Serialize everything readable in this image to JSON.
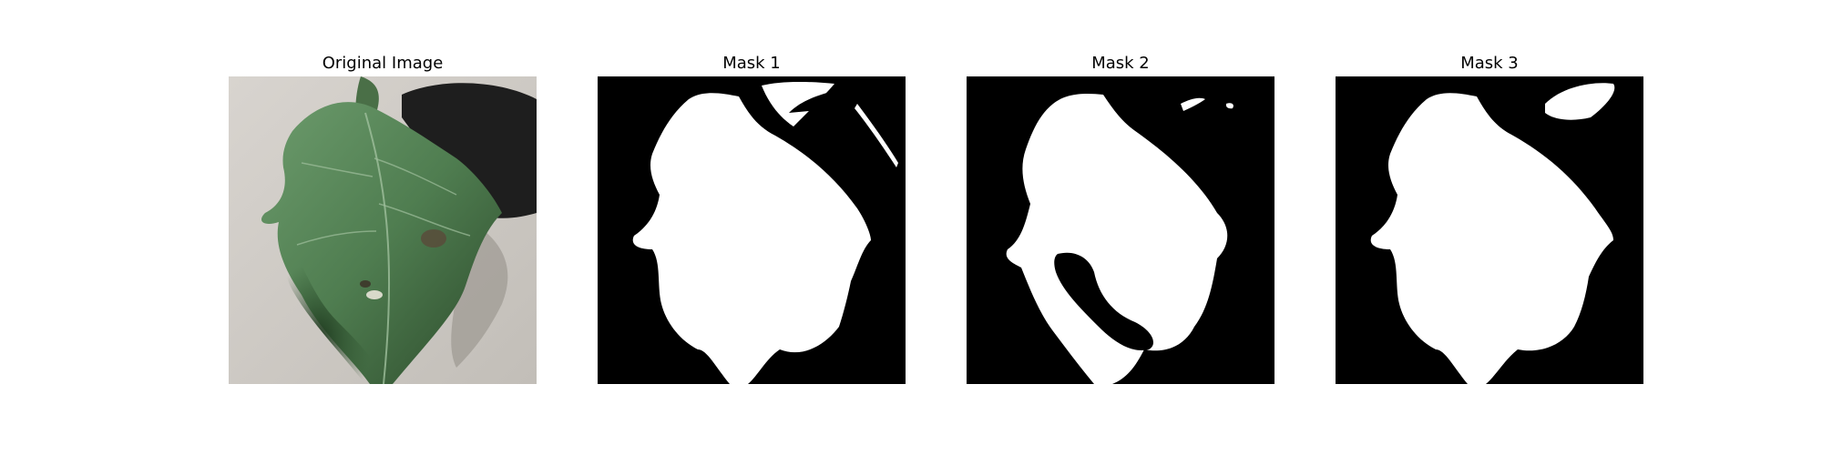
{
  "figure": {
    "background": "#ffffff",
    "panels": [
      {
        "title": "Original Image"
      },
      {
        "title": "Mask 1"
      },
      {
        "title": "Mask 2"
      },
      {
        "title": "Mask 3"
      }
    ]
  },
  "colors": {
    "photo_background": "#cfcbc6",
    "leaf_light": "#5f8a60",
    "leaf_dark": "#2e4f2c",
    "shadow": "#1e1e1e",
    "mask_fg": "#ffffff",
    "mask_bg": "#000000"
  }
}
